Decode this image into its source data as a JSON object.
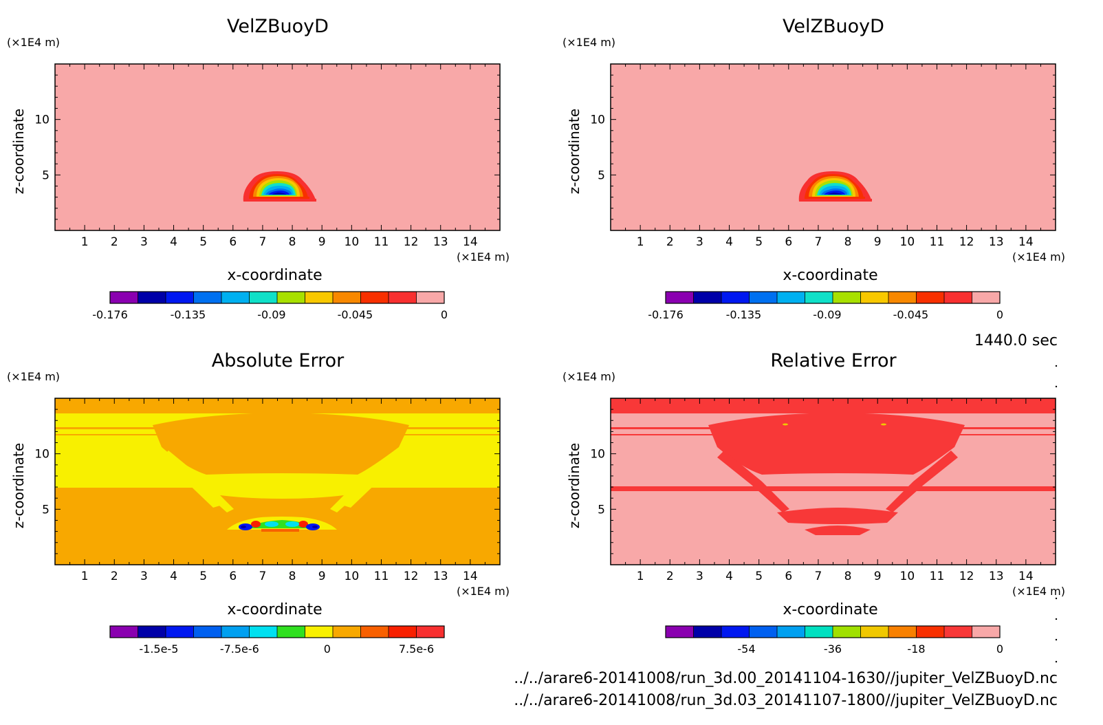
{
  "time_label": "1440.0 sec",
  "files": [
    "../../arare6-20141008/run_3d.00_20141104-1630//jupiter_VelZBuoyD.nc",
    "../../arare6-20141008/run_3d.03_20141107-1800//jupiter_VelZBuoyD.nc"
  ],
  "chart_data": [
    {
      "type": "heatmap",
      "title": "VelZBuoyD",
      "xlabel": "x-coordinate",
      "ylabel": "z-coordinate",
      "x_unit": "(×1E4 m)",
      "y_unit": "(×1E4 m)",
      "xlim": [
        0,
        15
      ],
      "ylim": [
        0,
        15
      ],
      "xticks": [
        "1",
        "2",
        "3",
        "4",
        "5",
        "6",
        "7",
        "8",
        "9",
        "10",
        "11",
        "12",
        "13",
        "14"
      ],
      "yticks": [
        "5",
        "10"
      ],
      "colorbar": {
        "colors": [
          "#8a00b0",
          "#0000a8",
          "#0018f0",
          "#0070f0",
          "#00b0f0",
          "#10e0c8",
          "#a8e000",
          "#f8c800",
          "#f88800",
          "#f83000",
          "#f83030",
          "#f8a8a8"
        ],
        "labels": [
          "-0.176",
          "-0.135",
          "-0.09",
          "-0.045",
          "0"
        ]
      },
      "background_value": "0",
      "feature": "bubble centered near x=7.6, z=3.5"
    },
    {
      "type": "heatmap",
      "title": "VelZBuoyD",
      "xlabel": "x-coordinate",
      "ylabel": "z-coordinate",
      "x_unit": "(×1E4 m)",
      "y_unit": "(×1E4 m)",
      "xlim": [
        0,
        15
      ],
      "ylim": [
        0,
        15
      ],
      "xticks": [
        "1",
        "2",
        "3",
        "4",
        "5",
        "6",
        "7",
        "8",
        "9",
        "10",
        "11",
        "12",
        "13",
        "14"
      ],
      "yticks": [
        "5",
        "10"
      ],
      "colorbar": {
        "colors": [
          "#8a00b0",
          "#0000a8",
          "#0018f0",
          "#0070f0",
          "#00b0f0",
          "#10e0c8",
          "#a8e000",
          "#f8c800",
          "#f88800",
          "#f83000",
          "#f83030",
          "#f8a8a8"
        ],
        "labels": [
          "-0.176",
          "-0.135",
          "-0.09",
          "-0.045",
          "0"
        ]
      },
      "background_value": "0",
      "feature": "bubble centered near x=7.6, z=3.5"
    },
    {
      "type": "heatmap",
      "title": "Absolute Error",
      "xlabel": "x-coordinate",
      "ylabel": "z-coordinate",
      "x_unit": "(×1E4 m)",
      "y_unit": "(×1E4 m)",
      "xlim": [
        0,
        15
      ],
      "ylim": [
        0,
        15
      ],
      "xticks": [
        "1",
        "2",
        "3",
        "4",
        "5",
        "6",
        "7",
        "8",
        "9",
        "10",
        "11",
        "12",
        "13",
        "14"
      ],
      "yticks": [
        "5",
        "10"
      ],
      "colorbar": {
        "colors": [
          "#8a00b0",
          "#0000a8",
          "#0018f0",
          "#0060f0",
          "#00a0f0",
          "#00e0f0",
          "#30e020",
          "#f8f000",
          "#f8a800",
          "#f86000",
          "#f82000",
          "#f83030"
        ],
        "labels": [
          "-1.5e-5",
          "-7.5e-6",
          "0",
          "7.5e-6"
        ]
      }
    },
    {
      "type": "heatmap",
      "title": "Relative Error",
      "xlabel": "x-coordinate",
      "ylabel": "z-coordinate",
      "x_unit": "(×1E4 m)",
      "y_unit": "(×1E4 m)",
      "xlim": [
        0,
        15
      ],
      "ylim": [
        0,
        15
      ],
      "xticks": [
        "1",
        "2",
        "3",
        "4",
        "5",
        "6",
        "7",
        "8",
        "9",
        "10",
        "11",
        "12",
        "13",
        "14"
      ],
      "yticks": [
        "5",
        "10"
      ],
      "colorbar": {
        "colors": [
          "#8a00b0",
          "#0000a8",
          "#0018f0",
          "#0060f0",
          "#00a0f0",
          "#00e0c0",
          "#a0e000",
          "#f0c800",
          "#f88000",
          "#f83000",
          "#f83838",
          "#f8a8a8"
        ],
        "labels": [
          "-54",
          "-36",
          "-18",
          "0"
        ]
      }
    }
  ]
}
